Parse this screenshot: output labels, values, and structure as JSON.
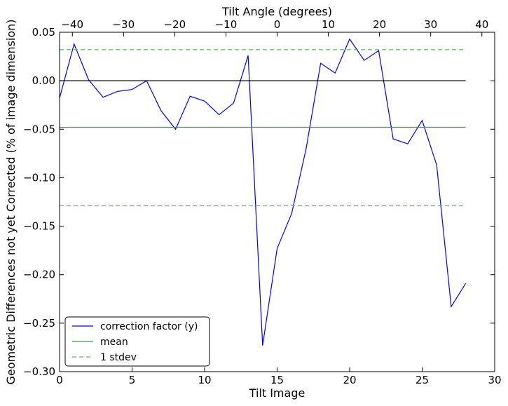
{
  "chart_data": {
    "type": "line",
    "title": "",
    "xlabel": "Tilt Image",
    "ylabel": "Geometric Differences not yet Corrected (% of image dimension)",
    "x2label": "Tilt Angle (degrees)",
    "xlim": [
      0,
      30
    ],
    "ylim": [
      -0.3,
      0.05
    ],
    "x2lim": [
      -42.5,
      42.5
    ],
    "xticks": [
      0,
      5,
      10,
      15,
      20,
      25,
      30
    ],
    "xtick_labels": [
      "0",
      "5",
      "10",
      "15",
      "20",
      "25",
      "30"
    ],
    "yticks": [
      0.05,
      0.0,
      -0.05,
      -0.1,
      -0.15,
      -0.2,
      -0.25,
      -0.3
    ],
    "ytick_labels": [
      "0.05",
      "0.00",
      "−0.05",
      "−0.10",
      "−0.15",
      "−0.20",
      "−0.25",
      "−0.30"
    ],
    "x2ticks": [
      -40,
      -30,
      -20,
      -10,
      0,
      10,
      20,
      30,
      40
    ],
    "x2tick_labels": [
      "−40",
      "−30",
      "−20",
      "−10",
      "0",
      "10",
      "20",
      "30",
      "40"
    ],
    "grid": false,
    "legend_position": "lower-left",
    "series": [
      {
        "name": "correction factor (y)",
        "style": "solid",
        "color": "#0000ff",
        "x": [
          0,
          1,
          2,
          3,
          4,
          5,
          6,
          7,
          8,
          9,
          10,
          11,
          12,
          13,
          14,
          15,
          16,
          17,
          18,
          19,
          20,
          21,
          22,
          23,
          24,
          25,
          26,
          27,
          28
        ],
        "y": [
          -0.018,
          0.038,
          0.001,
          -0.017,
          -0.011,
          -0.009,
          0.0,
          -0.031,
          -0.05,
          -0.016,
          -0.021,
          -0.035,
          -0.023,
          0.026,
          -0.273,
          -0.173,
          -0.137,
          -0.07,
          0.018,
          0.008,
          0.043,
          0.021,
          0.031,
          -0.06,
          -0.065,
          -0.041,
          -0.087,
          -0.233,
          -0.209
        ]
      },
      {
        "name": "",
        "style": "solid",
        "color": "#000000",
        "x": [
          0,
          28
        ],
        "y": [
          0.0,
          0.0
        ]
      },
      {
        "name": "mean",
        "style": "solid",
        "color": "#3c9a3c",
        "x": [
          0,
          28
        ],
        "y": [
          -0.048,
          -0.048
        ]
      },
      {
        "name": "1 stdev",
        "style": "dashed",
        "color": "#5cba5c",
        "x": [
          0,
          28
        ],
        "y": [
          0.032,
          0.032
        ]
      },
      {
        "name": "",
        "style": "dashed",
        "color": "#5cba5c",
        "x": [
          0,
          28
        ],
        "y": [
          -0.129,
          -0.129
        ]
      }
    ],
    "legend": [
      "correction factor (y)",
      "mean",
      "1 stdev"
    ]
  }
}
